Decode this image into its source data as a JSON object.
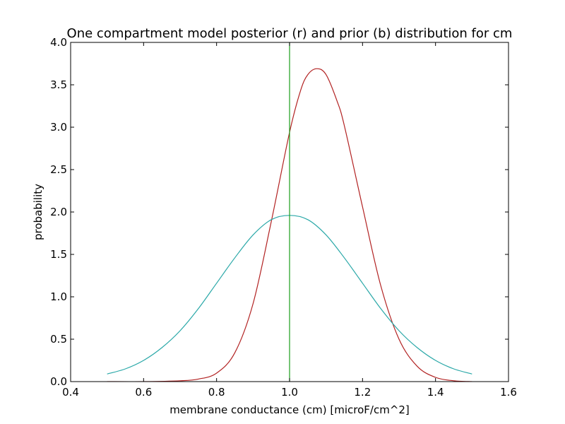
{
  "chart_data": {
    "type": "line",
    "title": "One compartment model posterior (r) and prior (b) distribution for cm",
    "xlabel": "membrane conductance (cm) [microF/cm^2]",
    "ylabel": "probability",
    "xlim": [
      0.4,
      1.6
    ],
    "ylim": [
      0.0,
      4.0
    ],
    "xticks": [
      0.4,
      0.6,
      0.8,
      1.0,
      1.2,
      1.4,
      1.6
    ],
    "yticks": [
      0.0,
      0.5,
      1.0,
      1.5,
      2.0,
      2.5,
      3.0,
      3.5,
      4.0
    ],
    "xtick_labels": [
      "0.4",
      "0.6",
      "0.8",
      "1.0",
      "1.2",
      "1.4",
      "1.6"
    ],
    "ytick_labels": [
      "0.0",
      "0.5",
      "1.0",
      "1.5",
      "2.0",
      "2.5",
      "3.0",
      "3.5",
      "4.0"
    ],
    "grid": false,
    "legend": "none",
    "series": [
      {
        "color": "#b22222",
        "x": [
          0.5,
          0.6,
          0.7,
          0.75,
          0.8,
          0.85,
          0.9,
          0.95,
          1.0,
          1.03,
          1.05,
          1.075,
          1.1,
          1.13,
          1.15,
          1.2,
          1.25,
          1.3,
          1.35,
          1.4,
          1.45,
          1.5
        ],
        "y": [
          0.0,
          0.0,
          0.01,
          0.03,
          0.1,
          0.34,
          0.92,
          1.89,
          2.94,
          3.43,
          3.62,
          3.69,
          3.62,
          3.31,
          3.02,
          2.06,
          1.13,
          0.5,
          0.18,
          0.05,
          0.01,
          0.0
        ]
      },
      {
        "color": "#2aa8a8",
        "x": [
          0.5,
          0.55,
          0.6,
          0.65,
          0.7,
          0.75,
          0.8,
          0.85,
          0.9,
          0.95,
          1.0,
          1.05,
          1.1,
          1.15,
          1.2,
          1.25,
          1.3,
          1.35,
          1.4,
          1.45,
          1.5
        ],
        "y": [
          0.09,
          0.15,
          0.25,
          0.4,
          0.6,
          0.86,
          1.16,
          1.46,
          1.73,
          1.91,
          1.96,
          1.91,
          1.73,
          1.46,
          1.16,
          0.86,
          0.6,
          0.4,
          0.25,
          0.15,
          0.09
        ]
      },
      {
        "color": "#1a9e1a",
        "x": [
          1.0,
          1.0
        ],
        "y": [
          0.0,
          4.0
        ]
      }
    ]
  }
}
